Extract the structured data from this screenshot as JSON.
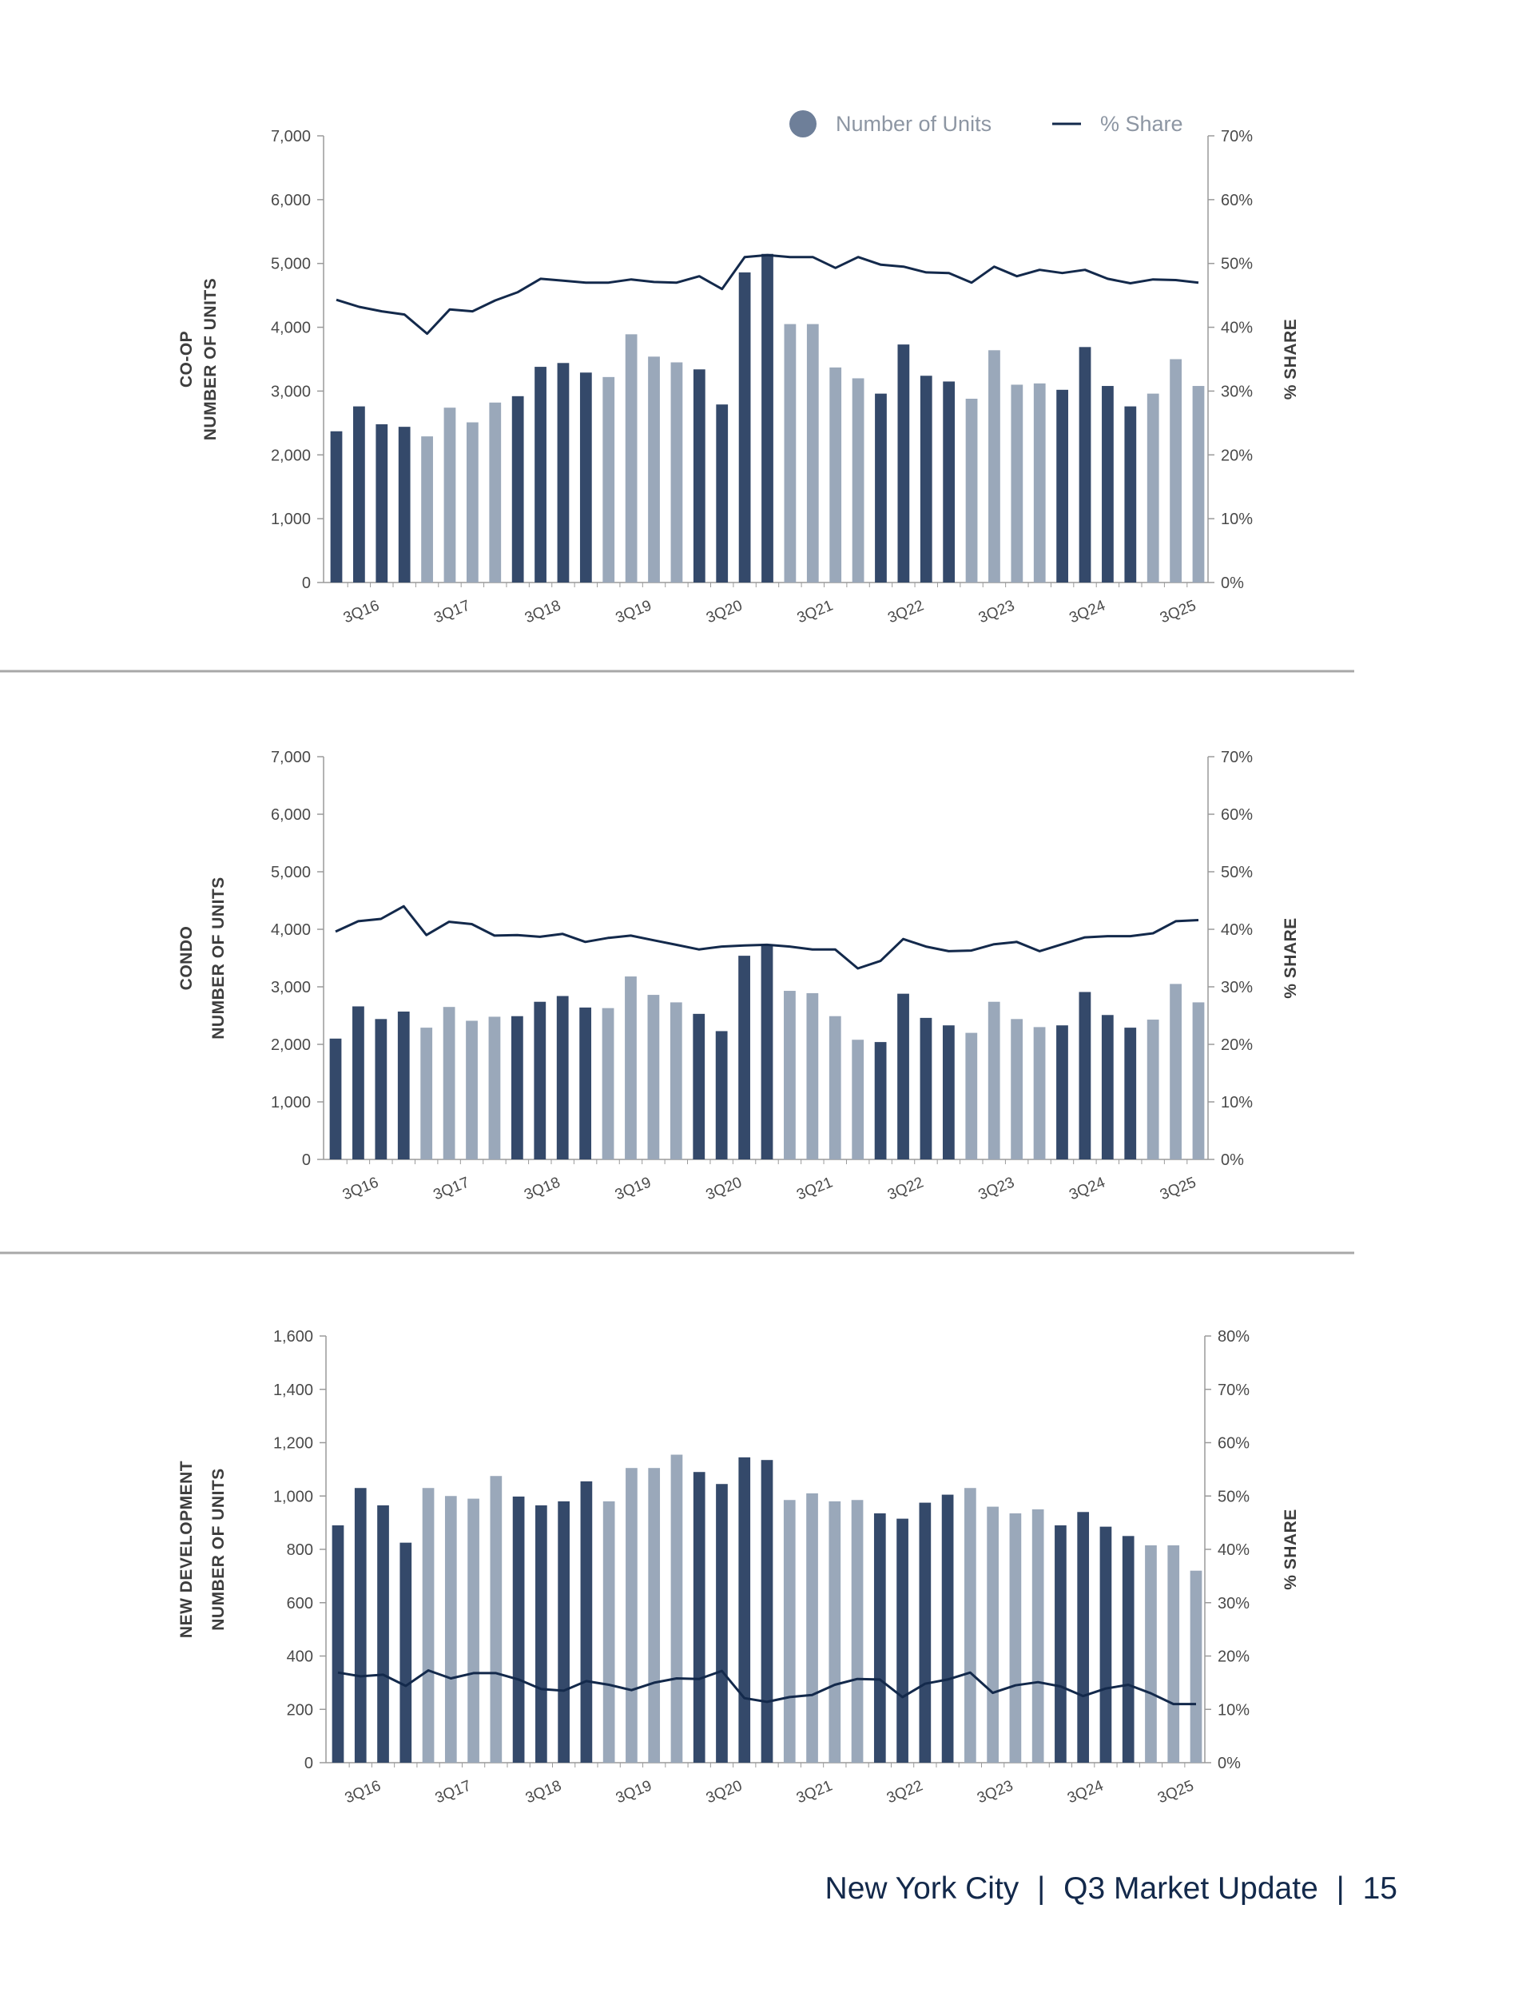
{
  "legend": {
    "units_label": "Number of Units",
    "share_label": "% Share"
  },
  "colors": {
    "dark": "#34496a",
    "light": "#9aa8ba",
    "line": "#13294b",
    "axis": "#9a9a9a",
    "divider": "#a8a8a8",
    "legend_dot": "#6e7f99"
  },
  "footer": {
    "city": "New York City",
    "sep1": "|",
    "title": "Q3 Market Update",
    "sep2": "|",
    "page": "15"
  },
  "chart_data": [
    {
      "type": "bar",
      "category_label": "CO-OP",
      "ylabel": "NUMBER OF UNITS",
      "y2label": "% SHARE",
      "ylim": [
        0,
        7000
      ],
      "y2lim": [
        0,
        70
      ],
      "y_ticks": [
        "0",
        "1,000",
        "2,000",
        "3,000",
        "4,000",
        "5,000",
        "6,000",
        "7,000"
      ],
      "y2_ticks": [
        "0%",
        "10%",
        "20%",
        "30%",
        "40%",
        "50%",
        "60%",
        "70%"
      ],
      "x_tick_labels": [
        "3Q16",
        "3Q17",
        "3Q18",
        "3Q19",
        "3Q20",
        "3Q21",
        "3Q22",
        "3Q23",
        "3Q24",
        "3Q25"
      ],
      "series": [
        {
          "name": "Number of Units",
          "values": [
            2370,
            2760,
            2480,
            2440,
            2290,
            2740,
            2510,
            2820,
            2920,
            3380,
            3440,
            3290,
            3220,
            3890,
            3540,
            3450,
            3340,
            2790,
            4860,
            5150,
            4050,
            4050,
            3370,
            3200,
            2960,
            3730,
            3240,
            3150,
            2880,
            3640,
            3100,
            3120,
            3020,
            3690,
            3080,
            2760,
            2960,
            3500,
            3080
          ]
        },
        {
          "name": "% Share",
          "values": [
            44.3,
            43.2,
            42.5,
            42.0,
            39.0,
            42.8,
            42.5,
            44.2,
            45.5,
            47.6,
            47.3,
            47.0,
            47.0,
            47.5,
            47.1,
            47.0,
            48.0,
            46.0,
            51.0,
            51.3,
            51.0,
            51.0,
            49.3,
            51.0,
            49.8,
            49.5,
            48.6,
            48.5,
            47.0,
            49.5,
            48.0,
            49.0,
            48.5,
            49.0,
            47.6,
            46.9,
            47.5,
            47.4,
            47.0
          ]
        }
      ]
    },
    {
      "type": "bar",
      "category_label": "CONDO",
      "ylabel": "NUMBER OF UNITS",
      "y2label": "% SHARE",
      "ylim": [
        0,
        7000
      ],
      "y2lim": [
        0,
        70
      ],
      "y_ticks": [
        "0",
        "1,000",
        "2,000",
        "3,000",
        "4,000",
        "5,000",
        "6,000",
        "7,000"
      ],
      "y2_ticks": [
        "0%",
        "10%",
        "20%",
        "30%",
        "40%",
        "50%",
        "60%",
        "70%"
      ],
      "x_tick_labels": [
        "3Q16",
        "3Q17",
        "3Q18",
        "3Q19",
        "3Q20",
        "3Q21",
        "3Q22",
        "3Q23",
        "3Q24",
        "3Q25"
      ],
      "series": [
        {
          "name": "Number of Units",
          "values": [
            2100,
            2660,
            2440,
            2570,
            2290,
            2650,
            2410,
            2480,
            2490,
            2740,
            2840,
            2640,
            2630,
            3180,
            2860,
            2730,
            2530,
            2230,
            3540,
            3730,
            2930,
            2890,
            2490,
            2080,
            2040,
            2880,
            2460,
            2330,
            2200,
            2740,
            2440,
            2300,
            2330,
            2910,
            2510,
            2290,
            2430,
            3050,
            2730
          ]
        },
        {
          "name": "% Share",
          "values": [
            39.6,
            41.4,
            41.8,
            44.0,
            39.0,
            41.3,
            40.9,
            38.9,
            39.0,
            38.7,
            39.2,
            37.8,
            38.5,
            38.9,
            38.1,
            37.3,
            36.5,
            37.0,
            37.2,
            37.3,
            37.0,
            36.5,
            36.5,
            33.2,
            34.5,
            38.3,
            37.0,
            36.2,
            36.3,
            37.4,
            37.8,
            36.2,
            37.4,
            38.6,
            38.8,
            38.8,
            39.3,
            41.4,
            41.6
          ]
        }
      ]
    },
    {
      "type": "bar",
      "category_label": "NEW DEVELOPMENT",
      "ylabel": "NUMBER OF UNITS",
      "y2label": "% SHARE",
      "ylim": [
        0,
        1600
      ],
      "y2lim": [
        0,
        80
      ],
      "y_ticks": [
        "0",
        "200",
        "400",
        "600",
        "800",
        "1,000",
        "1,200",
        "1,400",
        "1,600"
      ],
      "y2_ticks": [
        "0%",
        "10%",
        "20%",
        "30%",
        "40%",
        "50%",
        "60%",
        "70%",
        "80%"
      ],
      "x_tick_labels": [
        "3Q16",
        "3Q17",
        "3Q18",
        "3Q19",
        "3Q20",
        "3Q21",
        "3Q22",
        "3Q23",
        "3Q24",
        "3Q25"
      ],
      "series": [
        {
          "name": "Number of Units",
          "values": [
            890,
            1030,
            965,
            825,
            1030,
            1000,
            990,
            1075,
            998,
            965,
            980,
            1055,
            980,
            1105,
            1105,
            1155,
            1090,
            1045,
            1145,
            1135,
            985,
            1010,
            980,
            985,
            935,
            915,
            975,
            1005,
            1030,
            960,
            935,
            950,
            890,
            940,
            885,
            850,
            815,
            815,
            720
          ]
        },
        {
          "name": "% Share",
          "values": [
            16.9,
            16.2,
            16.5,
            14.4,
            17.3,
            15.8,
            16.8,
            16.8,
            15.6,
            13.8,
            13.5,
            15.3,
            14.6,
            13.6,
            15.0,
            15.8,
            15.7,
            17.2,
            12.1,
            11.4,
            12.3,
            12.7,
            14.6,
            15.7,
            15.6,
            12.3,
            14.8,
            15.6,
            16.9,
            13.1,
            14.5,
            15.1,
            14.3,
            12.5,
            13.9,
            14.6,
            13.0,
            11.0,
            11.0
          ]
        }
      ]
    }
  ]
}
